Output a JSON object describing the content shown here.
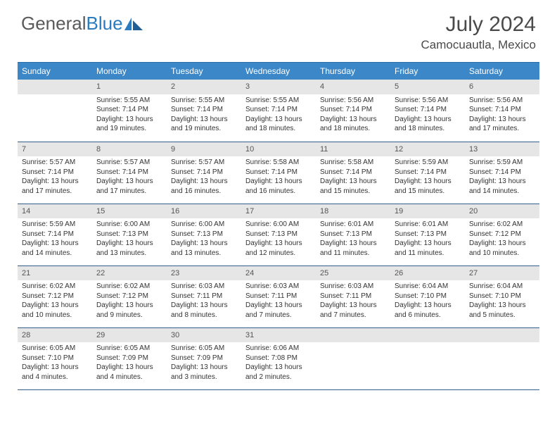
{
  "brand": {
    "part1": "General",
    "part2": "Blue"
  },
  "title": "July 2024",
  "location": "Camocuautla, Mexico",
  "colors": {
    "header_bg": "#3b87c8",
    "header_text": "#ffffff",
    "daynum_bg": "#e7e6e6",
    "row_border": "#325f8a",
    "body_text": "#333333",
    "title_text": "#4a4a4a",
    "logo_gray": "#5a5a5a",
    "logo_blue": "#2b7bbf"
  },
  "typography": {
    "title_fontsize": 30,
    "location_fontsize": 17,
    "weekday_fontsize": 12,
    "daynum_fontsize": 11,
    "body_fontsize": 10
  },
  "weekdays": [
    "Sunday",
    "Monday",
    "Tuesday",
    "Wednesday",
    "Thursday",
    "Friday",
    "Saturday"
  ],
  "weeks": [
    [
      null,
      {
        "n": "1",
        "sr": "Sunrise: 5:55 AM",
        "ss": "Sunset: 7:14 PM",
        "dl1": "Daylight: 13 hours",
        "dl2": "and 19 minutes."
      },
      {
        "n": "2",
        "sr": "Sunrise: 5:55 AM",
        "ss": "Sunset: 7:14 PM",
        "dl1": "Daylight: 13 hours",
        "dl2": "and 19 minutes."
      },
      {
        "n": "3",
        "sr": "Sunrise: 5:55 AM",
        "ss": "Sunset: 7:14 PM",
        "dl1": "Daylight: 13 hours",
        "dl2": "and 18 minutes."
      },
      {
        "n": "4",
        "sr": "Sunrise: 5:56 AM",
        "ss": "Sunset: 7:14 PM",
        "dl1": "Daylight: 13 hours",
        "dl2": "and 18 minutes."
      },
      {
        "n": "5",
        "sr": "Sunrise: 5:56 AM",
        "ss": "Sunset: 7:14 PM",
        "dl1": "Daylight: 13 hours",
        "dl2": "and 18 minutes."
      },
      {
        "n": "6",
        "sr": "Sunrise: 5:56 AM",
        "ss": "Sunset: 7:14 PM",
        "dl1": "Daylight: 13 hours",
        "dl2": "and 17 minutes."
      }
    ],
    [
      {
        "n": "7",
        "sr": "Sunrise: 5:57 AM",
        "ss": "Sunset: 7:14 PM",
        "dl1": "Daylight: 13 hours",
        "dl2": "and 17 minutes."
      },
      {
        "n": "8",
        "sr": "Sunrise: 5:57 AM",
        "ss": "Sunset: 7:14 PM",
        "dl1": "Daylight: 13 hours",
        "dl2": "and 17 minutes."
      },
      {
        "n": "9",
        "sr": "Sunrise: 5:57 AM",
        "ss": "Sunset: 7:14 PM",
        "dl1": "Daylight: 13 hours",
        "dl2": "and 16 minutes."
      },
      {
        "n": "10",
        "sr": "Sunrise: 5:58 AM",
        "ss": "Sunset: 7:14 PM",
        "dl1": "Daylight: 13 hours",
        "dl2": "and 16 minutes."
      },
      {
        "n": "11",
        "sr": "Sunrise: 5:58 AM",
        "ss": "Sunset: 7:14 PM",
        "dl1": "Daylight: 13 hours",
        "dl2": "and 15 minutes."
      },
      {
        "n": "12",
        "sr": "Sunrise: 5:59 AM",
        "ss": "Sunset: 7:14 PM",
        "dl1": "Daylight: 13 hours",
        "dl2": "and 15 minutes."
      },
      {
        "n": "13",
        "sr": "Sunrise: 5:59 AM",
        "ss": "Sunset: 7:14 PM",
        "dl1": "Daylight: 13 hours",
        "dl2": "and 14 minutes."
      }
    ],
    [
      {
        "n": "14",
        "sr": "Sunrise: 5:59 AM",
        "ss": "Sunset: 7:14 PM",
        "dl1": "Daylight: 13 hours",
        "dl2": "and 14 minutes."
      },
      {
        "n": "15",
        "sr": "Sunrise: 6:00 AM",
        "ss": "Sunset: 7:13 PM",
        "dl1": "Daylight: 13 hours",
        "dl2": "and 13 minutes."
      },
      {
        "n": "16",
        "sr": "Sunrise: 6:00 AM",
        "ss": "Sunset: 7:13 PM",
        "dl1": "Daylight: 13 hours",
        "dl2": "and 13 minutes."
      },
      {
        "n": "17",
        "sr": "Sunrise: 6:00 AM",
        "ss": "Sunset: 7:13 PM",
        "dl1": "Daylight: 13 hours",
        "dl2": "and 12 minutes."
      },
      {
        "n": "18",
        "sr": "Sunrise: 6:01 AM",
        "ss": "Sunset: 7:13 PM",
        "dl1": "Daylight: 13 hours",
        "dl2": "and 11 minutes."
      },
      {
        "n": "19",
        "sr": "Sunrise: 6:01 AM",
        "ss": "Sunset: 7:13 PM",
        "dl1": "Daylight: 13 hours",
        "dl2": "and 11 minutes."
      },
      {
        "n": "20",
        "sr": "Sunrise: 6:02 AM",
        "ss": "Sunset: 7:12 PM",
        "dl1": "Daylight: 13 hours",
        "dl2": "and 10 minutes."
      }
    ],
    [
      {
        "n": "21",
        "sr": "Sunrise: 6:02 AM",
        "ss": "Sunset: 7:12 PM",
        "dl1": "Daylight: 13 hours",
        "dl2": "and 10 minutes."
      },
      {
        "n": "22",
        "sr": "Sunrise: 6:02 AM",
        "ss": "Sunset: 7:12 PM",
        "dl1": "Daylight: 13 hours",
        "dl2": "and 9 minutes."
      },
      {
        "n": "23",
        "sr": "Sunrise: 6:03 AM",
        "ss": "Sunset: 7:11 PM",
        "dl1": "Daylight: 13 hours",
        "dl2": "and 8 minutes."
      },
      {
        "n": "24",
        "sr": "Sunrise: 6:03 AM",
        "ss": "Sunset: 7:11 PM",
        "dl1": "Daylight: 13 hours",
        "dl2": "and 7 minutes."
      },
      {
        "n": "25",
        "sr": "Sunrise: 6:03 AM",
        "ss": "Sunset: 7:11 PM",
        "dl1": "Daylight: 13 hours",
        "dl2": "and 7 minutes."
      },
      {
        "n": "26",
        "sr": "Sunrise: 6:04 AM",
        "ss": "Sunset: 7:10 PM",
        "dl1": "Daylight: 13 hours",
        "dl2": "and 6 minutes."
      },
      {
        "n": "27",
        "sr": "Sunrise: 6:04 AM",
        "ss": "Sunset: 7:10 PM",
        "dl1": "Daylight: 13 hours",
        "dl2": "and 5 minutes."
      }
    ],
    [
      {
        "n": "28",
        "sr": "Sunrise: 6:05 AM",
        "ss": "Sunset: 7:10 PM",
        "dl1": "Daylight: 13 hours",
        "dl2": "and 4 minutes."
      },
      {
        "n": "29",
        "sr": "Sunrise: 6:05 AM",
        "ss": "Sunset: 7:09 PM",
        "dl1": "Daylight: 13 hours",
        "dl2": "and 4 minutes."
      },
      {
        "n": "30",
        "sr": "Sunrise: 6:05 AM",
        "ss": "Sunset: 7:09 PM",
        "dl1": "Daylight: 13 hours",
        "dl2": "and 3 minutes."
      },
      {
        "n": "31",
        "sr": "Sunrise: 6:06 AM",
        "ss": "Sunset: 7:08 PM",
        "dl1": "Daylight: 13 hours",
        "dl2": "and 2 minutes."
      },
      null,
      null,
      null
    ]
  ]
}
